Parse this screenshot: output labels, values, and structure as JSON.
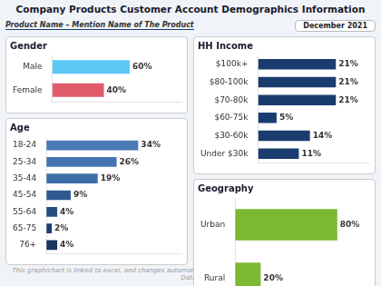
{
  "title": "Company Products Customer Account Demographics Information",
  "subtitle": "Product Name – Mention Name of The Product",
  "annotations": [
    "December 2021",
    "This graph/chart is linked to excel, and changes automatically based on data. Just left click on it and select 'Edit Data'."
  ],
  "chart_data": [
    {
      "type": "bar",
      "title": "Gender",
      "orientation": "horizontal",
      "categories": [
        "Male",
        "Female"
      ],
      "values": [
        60,
        40
      ],
      "value_labels": [
        "60%",
        "40%"
      ],
      "colors": [
        "#5BC8F5",
        "#E05C6B"
      ],
      "xlim": [
        0,
        100
      ],
      "data_labels": true,
      "tick_labels": "y",
      "grid": false
    },
    {
      "type": "bar",
      "title": "Age",
      "orientation": "horizontal",
      "categories": [
        "18-24",
        "25-34",
        "35-44",
        "45-54",
        "55-64",
        "65-75",
        "76+"
      ],
      "values": [
        34,
        26,
        19,
        9,
        4,
        2,
        4
      ],
      "value_labels": [
        "34%",
        "26%",
        "19%",
        "9%",
        "4%",
        "2%",
        "4%"
      ],
      "colors": [
        "#4A7AB5",
        "#4575B0",
        "#3E6EA8",
        "#2E5990",
        "#264D80",
        "#1E3F6E",
        "#1A3560"
      ],
      "xlim": [
        0,
        50
      ],
      "data_labels": true,
      "tick_labels": "y",
      "grid": false
    },
    {
      "type": "bar",
      "title": "HH Income",
      "orientation": "horizontal",
      "categories": [
        "$100k+",
        "$80-100k",
        "$70-80k",
        "$60-75k",
        "$30-60k",
        "Under $30k"
      ],
      "values": [
        21,
        21,
        21,
        5,
        14,
        11
      ],
      "value_labels": [
        "21%",
        "21%",
        "21%",
        "5%",
        "14%",
        "11%"
      ],
      "color": "#1A3C6E",
      "xlim": [
        0,
        30
      ],
      "data_labels": true,
      "tick_labels": "y",
      "grid": false
    },
    {
      "type": "bar",
      "title": "Geography",
      "orientation": "horizontal",
      "categories": [
        "Urban",
        "Rural"
      ],
      "values": [
        80,
        20
      ],
      "value_labels": [
        "80%",
        "20%"
      ],
      "color": "#7CB832",
      "xlim": [
        0,
        105
      ],
      "data_labels": true,
      "tick_labels": "y",
      "grid": false
    }
  ]
}
